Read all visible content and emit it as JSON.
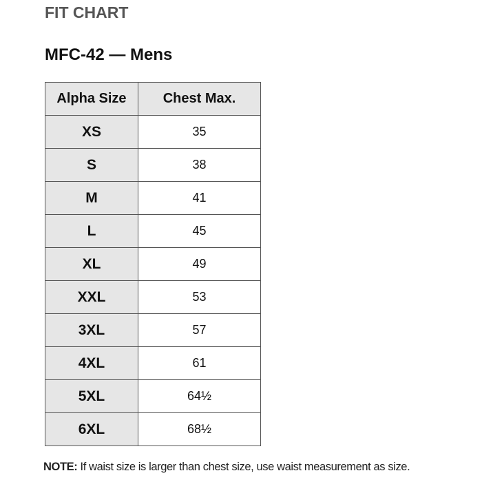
{
  "header": {
    "title": "FIT CHART",
    "subtitle": "MFC-42 — Mens"
  },
  "table": {
    "columns": [
      "Alpha Size",
      "Chest Max."
    ],
    "rows": [
      [
        "XS",
        "35"
      ],
      [
        "S",
        "38"
      ],
      [
        "M",
        "41"
      ],
      [
        "L",
        "45"
      ],
      [
        "XL",
        "49"
      ],
      [
        "XXL",
        "53"
      ],
      [
        "3XL",
        "57"
      ],
      [
        "4XL",
        "61"
      ],
      [
        "5XL",
        "64½"
      ],
      [
        "6XL",
        "68½"
      ]
    ]
  },
  "note": {
    "label": "NOTE:",
    "text": "If waist size is larger than chest size, use waist measurement as size."
  }
}
